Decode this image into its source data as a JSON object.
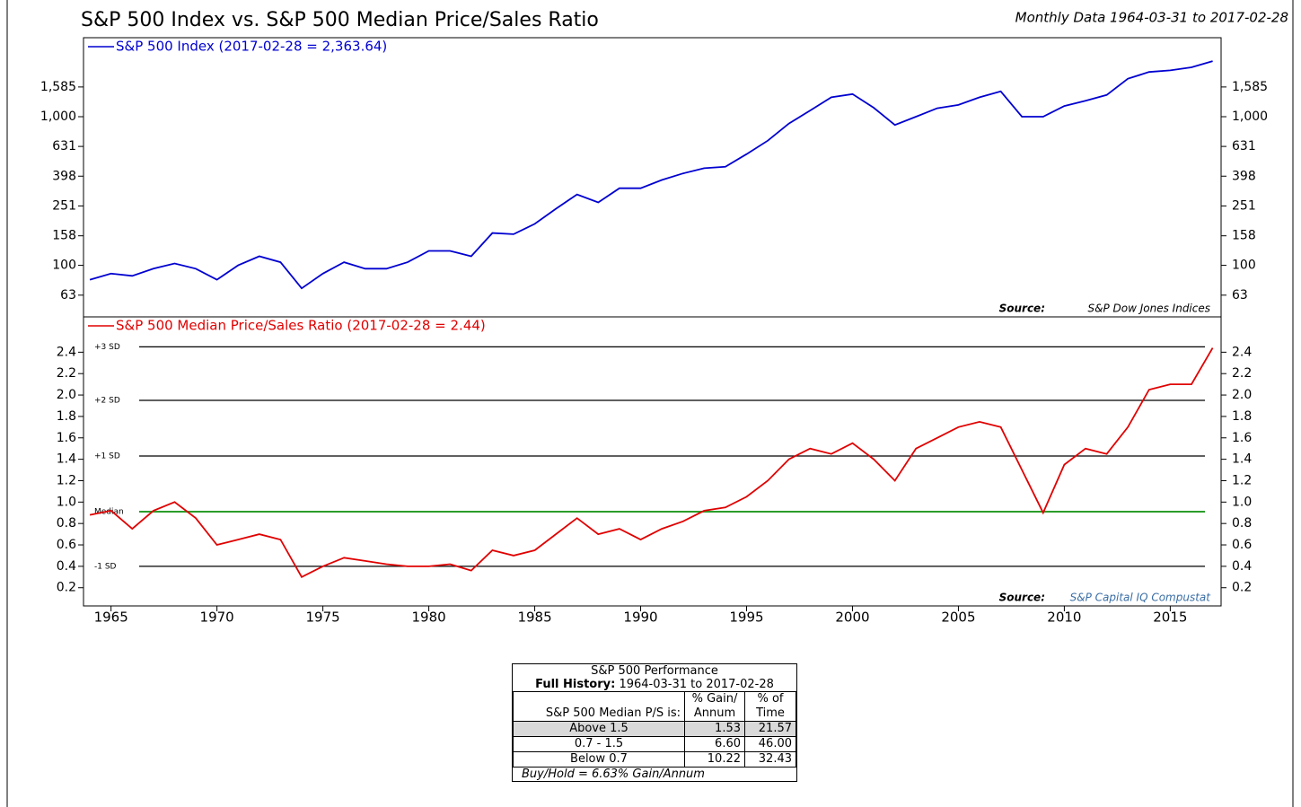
{
  "chart_data": [
    {
      "type": "line",
      "title": "S&P 500 Index vs. S&P 500 Median Price/Sales Ratio",
      "subtitle": "Monthly Data 1964-03-31 to 2017-02-28",
      "log_scale": true,
      "ylim": [
        45,
        3400
      ],
      "yticks": [
        63,
        100,
        158,
        251,
        398,
        631,
        {
          "value": 1000,
          "label": "1,000"
        },
        {
          "value": 1585,
          "label": "1,585"
        }
      ],
      "xlim": [
        1963.7,
        2017.4
      ],
      "x": [
        1964,
        1965,
        1966,
        1967,
        1968,
        1969,
        1970,
        1971,
        1972,
        1973,
        1974,
        1975,
        1976,
        1977,
        1978,
        1979,
        1980,
        1981,
        1982,
        1983,
        1984,
        1985,
        1986,
        1987,
        1988,
        1989,
        1990,
        1991,
        1992,
        1993,
        1994,
        1995,
        1996,
        1997,
        1998,
        1999,
        2000,
        2001,
        2002,
        2003,
        2004,
        2005,
        2006,
        2007,
        2008,
        2009,
        2010,
        2011,
        2012,
        2013,
        2014,
        2015,
        2016,
        2017
      ],
      "series": [
        {
          "name": "S&P 500 Index (2017-02-28 = 2,363.64)",
          "color": "#0000d0",
          "values": [
            80,
            88,
            85,
            95,
            103,
            95,
            80,
            100,
            115,
            105,
            70,
            88,
            105,
            95,
            95,
            105,
            125,
            125,
            115,
            165,
            162,
            190,
            240,
            300,
            265,
            330,
            330,
            375,
            415,
            450,
            460,
            560,
            690,
            900,
            1100,
            1350,
            1420,
            1150,
            880,
            1000,
            1140,
            1200,
            1350,
            1480,
            1000,
            1000,
            1180,
            1280,
            1400,
            1800,
            2000,
            2050,
            2150,
            2363.64
          ]
        }
      ],
      "source_label": "Source:",
      "source": "S&P Dow Jones Indices"
    },
    {
      "type": "line",
      "ylim": [
        0.03,
        2.73
      ],
      "yticks": [
        0.2,
        0.4,
        0.6,
        0.8,
        {
          "value": 1,
          "label": "1.0"
        },
        1.2,
        1.4,
        1.6,
        1.8,
        {
          "value": 2,
          "label": "2.0"
        },
        2.2,
        2.4
      ],
      "xlim": [
        1963.7,
        2017.4
      ],
      "xticks": [
        1965,
        1970,
        1975,
        1980,
        1985,
        1990,
        1995,
        2000,
        2005,
        2010,
        2015
      ],
      "x": [
        1964,
        1965,
        1966,
        1967,
        1968,
        1969,
        1970,
        1971,
        1972,
        1973,
        1974,
        1975,
        1976,
        1977,
        1978,
        1979,
        1980,
        1981,
        1982,
        1983,
        1984,
        1985,
        1986,
        1987,
        1988,
        1989,
        1990,
        1991,
        1992,
        1993,
        1994,
        1995,
        1996,
        1997,
        1998,
        1999,
        2000,
        2001,
        2002,
        2003,
        2004,
        2005,
        2006,
        2007,
        2008,
        2009,
        2010,
        2011,
        2012,
        2013,
        2014,
        2015,
        2016,
        2017
      ],
      "series": [
        {
          "name": "S&P 500 Median Price/Sales Ratio (2017-02-28 = 2.44)",
          "color": "#e00000",
          "values": [
            0.88,
            0.92,
            0.75,
            0.92,
            1.0,
            0.85,
            0.6,
            0.65,
            0.7,
            0.65,
            0.3,
            0.4,
            0.48,
            0.45,
            0.42,
            0.4,
            0.4,
            0.42,
            0.36,
            0.55,
            0.5,
            0.55,
            0.7,
            0.85,
            0.7,
            0.75,
            0.65,
            0.75,
            0.82,
            0.92,
            0.95,
            1.05,
            1.2,
            1.4,
            1.5,
            1.45,
            1.55,
            1.4,
            1.2,
            1.5,
            1.6,
            1.7,
            1.75,
            1.7,
            1.3,
            0.9,
            1.35,
            1.5,
            1.45,
            1.7,
            2.05,
            2.1,
            2.1,
            2.44
          ]
        }
      ],
      "reference_lines": [
        {
          "value": 2.45,
          "label": "+3 SD",
          "color": "#000000"
        },
        {
          "value": 1.95,
          "label": "+2 SD",
          "color": "#000000"
        },
        {
          "value": 1.43,
          "label": "+1 SD",
          "color": "#000000"
        },
        {
          "value": 0.91,
          "label": "Median",
          "color": "#2a9d2a"
        },
        {
          "value": 0.4,
          "label": "-1 SD",
          "color": "#000000"
        }
      ],
      "source_label": "Source:",
      "source": "S&P Capital IQ Compustat"
    }
  ],
  "table": {
    "title": "S&P 500 Performance",
    "history_label": "Full History:",
    "history": "1964-03-31 to 2017-02-28",
    "header": [
      "S&P 500 Median P/S is:",
      "% Gain/ Annum",
      "% of Time"
    ],
    "rows": [
      [
        "Above 1.5",
        "1.53",
        "21.57"
      ],
      [
        "0.7 - 1.5",
        "6.60",
        "46.00"
      ],
      [
        "Below 0.7",
        "10.22",
        "32.43"
      ]
    ],
    "footer": "Buy/Hold = 6.63% Gain/Annum"
  }
}
